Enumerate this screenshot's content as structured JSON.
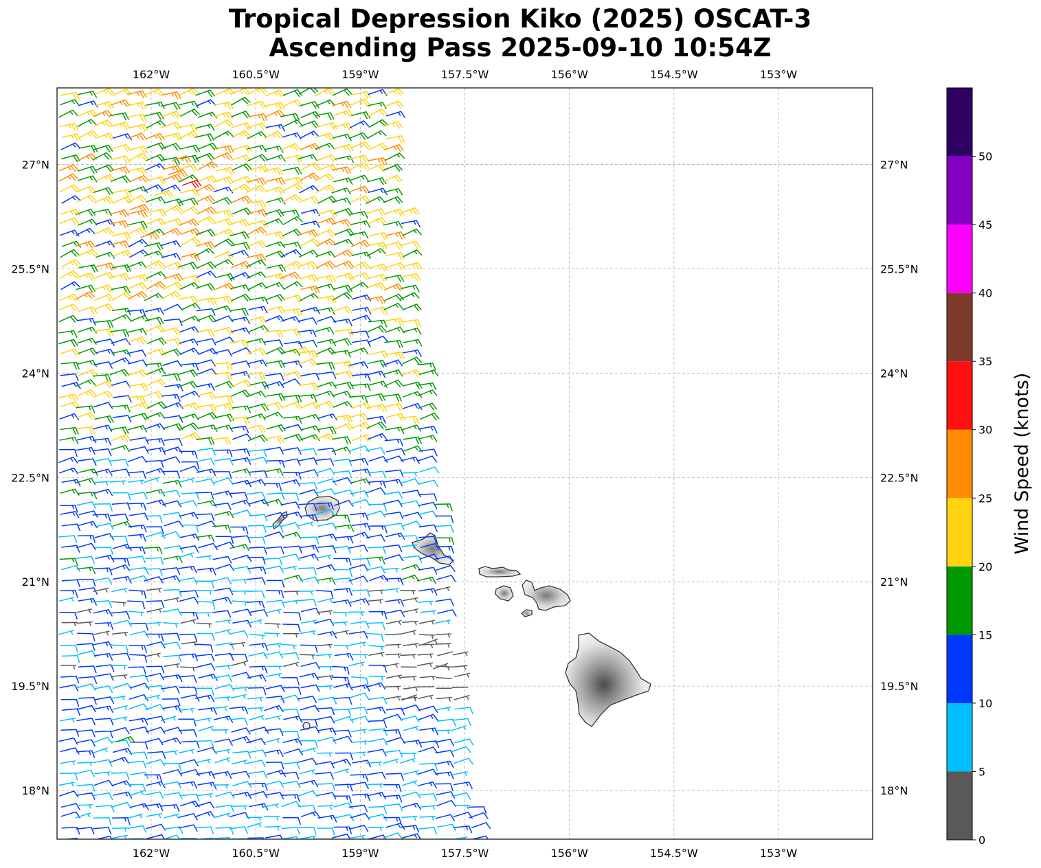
{
  "title": {
    "line1": "Tropical Depression Kiko (2025) OSCAT-3",
    "line2": "Ascending Pass 2025-09-10 10:54Z"
  },
  "map": {
    "lon_range": [
      -163.35,
      -151.65
    ],
    "lat_range": [
      17.3,
      28.1
    ],
    "lon_ticks": [
      {
        "value": -162.0,
        "label": "162°W"
      },
      {
        "value": -160.5,
        "label": "160.5°W"
      },
      {
        "value": -159.0,
        "label": "159°W"
      },
      {
        "value": -157.5,
        "label": "157.5°W"
      },
      {
        "value": -156.0,
        "label": "156°W"
      },
      {
        "value": -154.5,
        "label": "154.5°W"
      },
      {
        "value": -153.0,
        "label": "153°W"
      }
    ],
    "lat_ticks": [
      {
        "value": 18.0,
        "label": "18°N"
      },
      {
        "value": 19.5,
        "label": "19.5°N"
      },
      {
        "value": 21.0,
        "label": "21°N"
      },
      {
        "value": 22.5,
        "label": "22.5°N"
      },
      {
        "value": 24.0,
        "label": "24°N"
      },
      {
        "value": 25.5,
        "label": "25.5°N"
      },
      {
        "value": 27.0,
        "label": "27°N"
      }
    ],
    "gridlines": true,
    "land": "Hawaiian Islands (Niihau, Kauai, Oahu, Molokai, Lanai, Maui, Kahoolawe, Hawaii)"
  },
  "colorbar": {
    "label": "Wind Speed (knots)",
    "ticks": [
      "0",
      "5",
      "10",
      "15",
      "20",
      "25",
      "30",
      "35",
      "40",
      "45",
      "50"
    ],
    "bins": [
      {
        "min": 0,
        "max": 5,
        "color": "#595959"
      },
      {
        "min": 5,
        "max": 10,
        "color": "#00bfff"
      },
      {
        "min": 10,
        "max": 15,
        "color": "#0037ff"
      },
      {
        "min": 15,
        "max": 20,
        "color": "#009900"
      },
      {
        "min": 20,
        "max": 25,
        "color": "#ffd310"
      },
      {
        "min": 25,
        "max": 30,
        "color": "#ff8c00"
      },
      {
        "min": 30,
        "max": 35,
        "color": "#ff0f0f"
      },
      {
        "min": 35,
        "max": 40,
        "color": "#7f3b2a"
      },
      {
        "min": 40,
        "max": 45,
        "color": "#ff00ff"
      },
      {
        "min": 45,
        "max": 50,
        "color": "#8400c2"
      },
      {
        "min": 50,
        "max": 55,
        "color": "#2e0063"
      }
    ]
  },
  "chart_data": {
    "type": "scatter",
    "description_type": "wind-barbs",
    "units": "knots",
    "swath_regions": [
      {
        "lat_min": 25.0,
        "lat_max": 28.1,
        "speed_range": [
          14,
          27
        ],
        "direction_from_deg": 70
      },
      {
        "lat_min": 23.0,
        "lat_max": 25.0,
        "speed_range": [
          11,
          23
        ],
        "direction_from_deg": 75
      },
      {
        "lat_min": 21.0,
        "lat_max": 23.0,
        "speed_range": [
          7,
          16
        ],
        "direction_from_deg": 80
      },
      {
        "lat_min": 19.5,
        "lat_max": 21.0,
        "speed_range": [
          3,
          14
        ],
        "direction_from_deg": 85
      },
      {
        "lat_min": 17.3,
        "lat_max": 19.5,
        "speed_range": [
          6,
          14
        ],
        "direction_from_deg": 80
      }
    ],
    "featured_barbs": [
      {
        "lon": -161.55,
        "lat": 26.7,
        "speed": 32
      },
      {
        "lon": -161.7,
        "lat": 27.05,
        "speed": 27
      },
      {
        "lon": -161.75,
        "lat": 26.85,
        "speed": 26
      },
      {
        "lon": -162.3,
        "lat": 26.35,
        "speed": 26
      },
      {
        "lon": -162.15,
        "lat": 25.95,
        "speed": 27
      },
      {
        "lon": -161.95,
        "lat": 26.55,
        "speed": 23
      },
      {
        "lon": -160.0,
        "lat": 24.3,
        "speed": 22
      },
      {
        "lon": -158.1,
        "lat": 20.1,
        "speed": 3
      },
      {
        "lon": -157.95,
        "lat": 19.75,
        "speed": 4
      },
      {
        "lon": -158.4,
        "lat": 19.3,
        "speed": 4
      },
      {
        "lon": -162.5,
        "lat": 18.7,
        "speed": 16
      }
    ]
  }
}
